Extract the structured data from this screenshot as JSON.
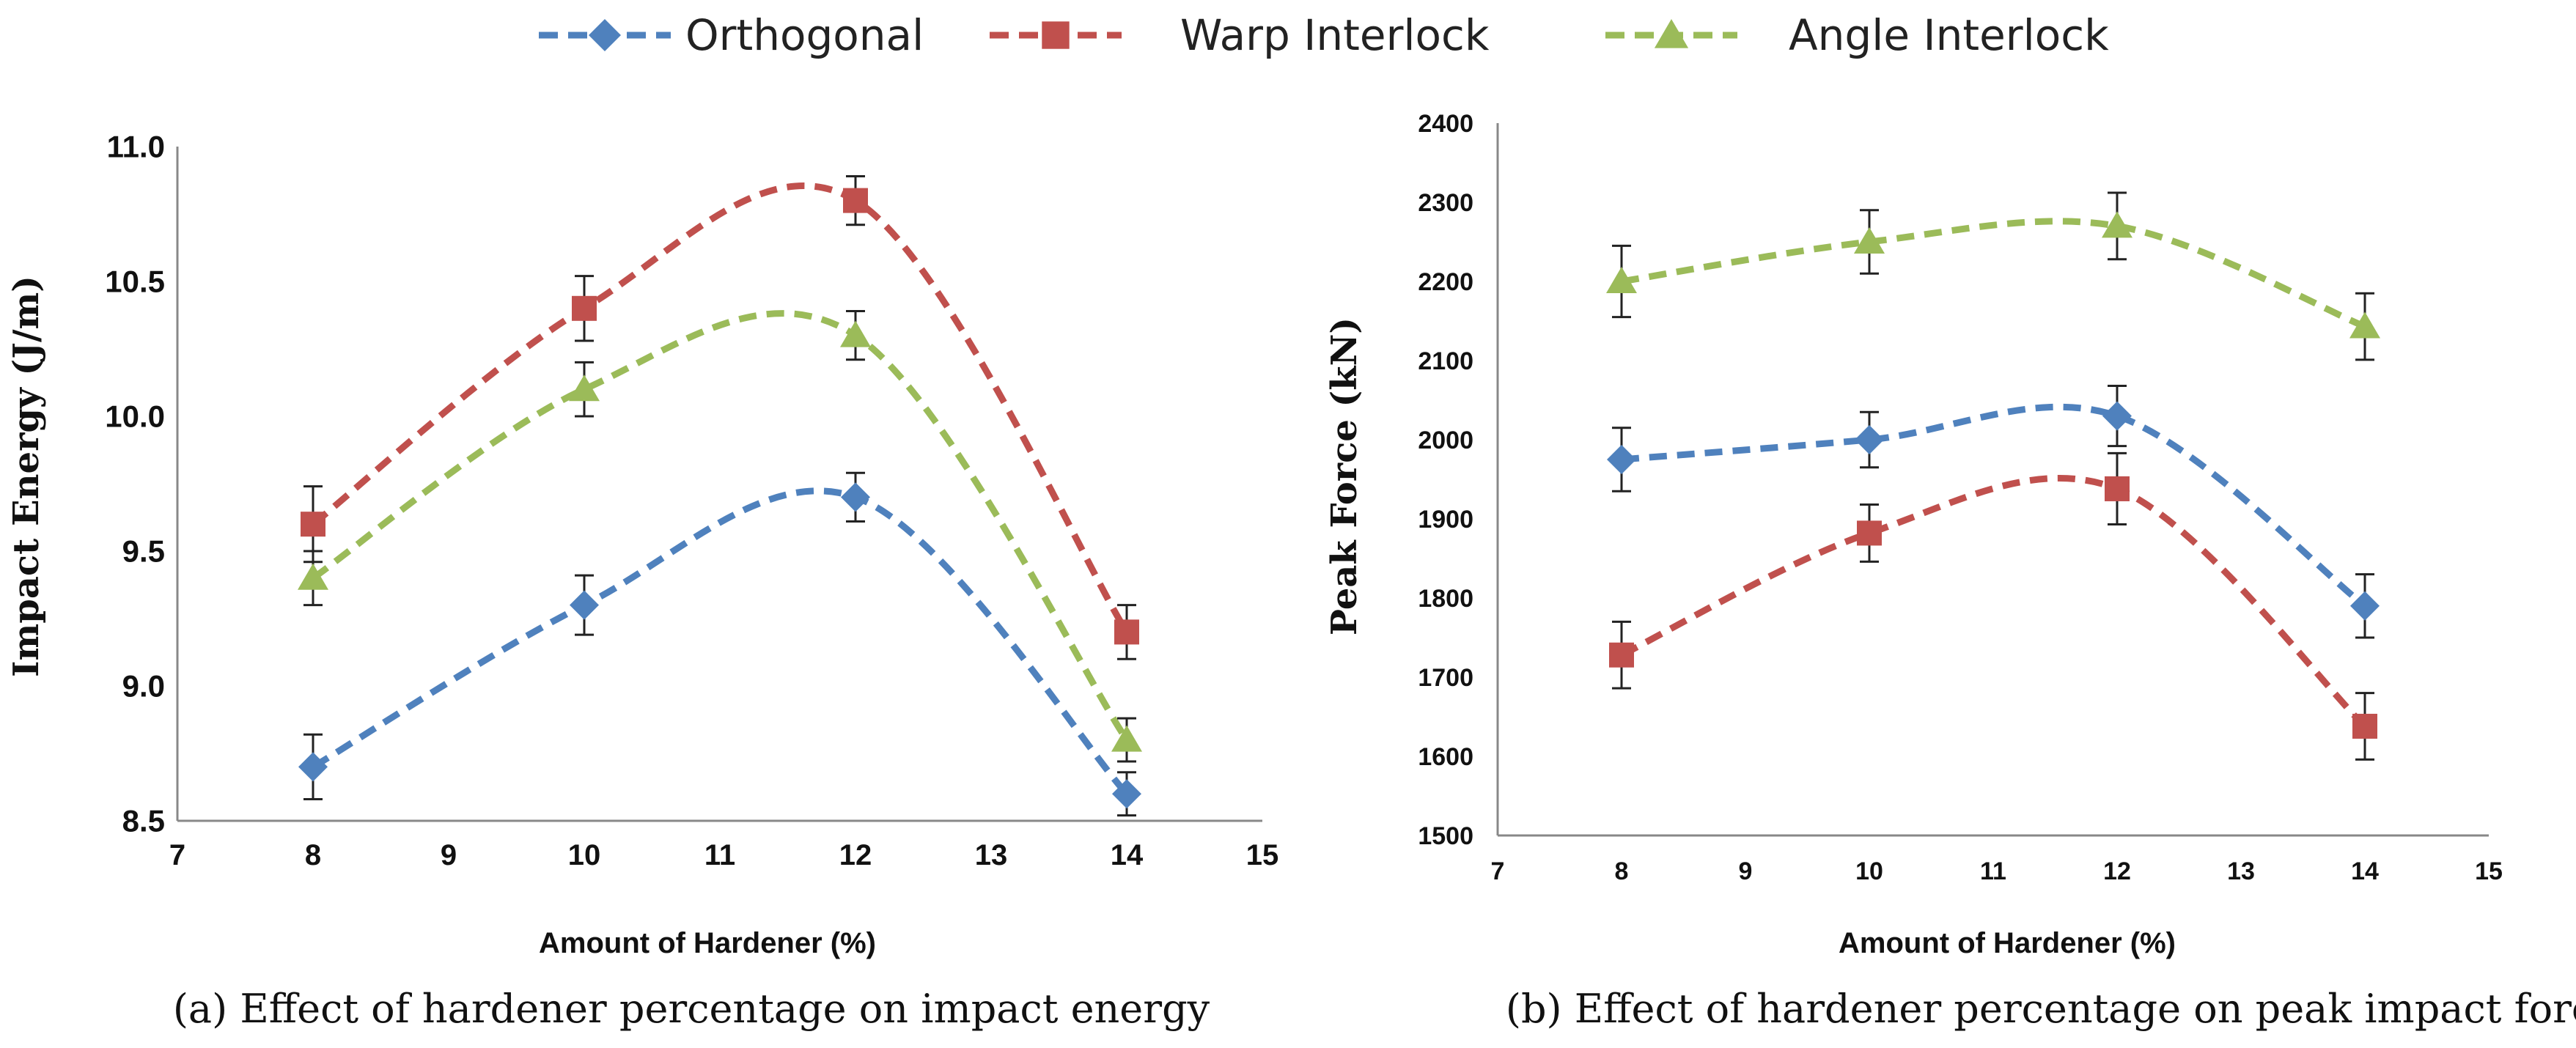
{
  "legend": {
    "entries": [
      {
        "name": "Orthogonal",
        "color": "#4F81BD",
        "marker": "diamond"
      },
      {
        "name": "Warp Interlock",
        "color": "#C0504D",
        "marker": "square"
      },
      {
        "name": "Angle Interlock",
        "color": "#9BBB59",
        "marker": "triangle"
      }
    ]
  },
  "chart_data": [
    {
      "type": "line",
      "caption": "(a) Effect of hardener percentage on impact energy",
      "xlabel": "Amount of Hardener (%)",
      "ylabel": "Impact Energy (J/m)",
      "xlim": [
        7,
        15
      ],
      "ylim": [
        8.5,
        11.0
      ],
      "xticks": [
        7,
        8,
        9,
        10,
        11,
        12,
        13,
        14,
        15
      ],
      "yticks": [
        8.5,
        9.0,
        9.5,
        10.0,
        10.5,
        11.0
      ],
      "ytick_labels": [
        "8.5",
        "9.0",
        "9.5",
        "10.0",
        "10.5",
        "11.0"
      ],
      "x": [
        8,
        10,
        12,
        14
      ],
      "series": [
        {
          "name": "Orthogonal",
          "values": [
            8.7,
            9.3,
            9.7,
            8.6
          ],
          "error": [
            0.12,
            0.11,
            0.09,
            0.08
          ]
        },
        {
          "name": "Warp Interlock",
          "values": [
            9.6,
            10.4,
            10.8,
            9.2
          ],
          "error": [
            0.14,
            0.12,
            0.09,
            0.1
          ]
        },
        {
          "name": "Angle Interlock",
          "values": [
            9.4,
            10.1,
            10.3,
            8.8
          ],
          "error": [
            0.1,
            0.1,
            0.09,
            0.08
          ]
        }
      ]
    },
    {
      "type": "line",
      "caption": "(b) Effect of hardener percentage on peak impact force",
      "xlabel": "Amount of Hardener (%)",
      "ylabel": "Peak Force (kN)",
      "xlim": [
        7,
        15
      ],
      "ylim": [
        1500,
        2400
      ],
      "xticks": [
        7,
        8,
        9,
        10,
        11,
        12,
        13,
        14,
        15
      ],
      "yticks": [
        1500,
        1600,
        1700,
        1800,
        1900,
        2000,
        2100,
        2200,
        2300,
        2400
      ],
      "ytick_labels": [
        "1500",
        "1600",
        "1700",
        "1800",
        "1900",
        "2000",
        "2100",
        "2200",
        "2300",
        "2400"
      ],
      "x": [
        8,
        10,
        12,
        14
      ],
      "series": [
        {
          "name": "Orthogonal",
          "values": [
            1975,
            2000,
            2030,
            1790
          ],
          "error": [
            40,
            35,
            38,
            40
          ]
        },
        {
          "name": "Warp Interlock",
          "values": [
            1728,
            1882,
            1938,
            1638
          ],
          "error": [
            42,
            36,
            45,
            42
          ]
        },
        {
          "name": "Angle Interlock",
          "values": [
            2200,
            2250,
            2270,
            2143
          ],
          "error": [
            45,
            40,
            42,
            42
          ]
        }
      ]
    }
  ]
}
